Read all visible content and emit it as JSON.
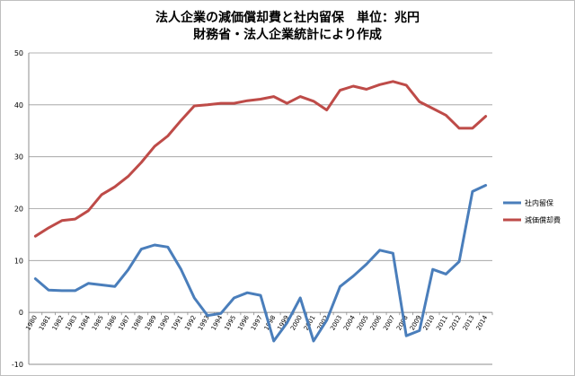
{
  "chart_data": {
    "type": "line",
    "title": "法人企業の減価償却費と社内留保　単位：兆円",
    "subtitle": "財務省・法人企業統計により作成",
    "xlabel": "",
    "ylabel": "",
    "ylim": [
      -10,
      50
    ],
    "yticks": [
      -10,
      0,
      10,
      20,
      30,
      40,
      50
    ],
    "grid": true,
    "legend_position": "right",
    "x": [
      "1980",
      "1981",
      "1982",
      "1983",
      "1984",
      "1985",
      "1986",
      "1987",
      "1988",
      "1989",
      "1990",
      "1991",
      "1992",
      "1993",
      "1994",
      "1995",
      "1996",
      "1997",
      "1998",
      "1999",
      "2000",
      "2001",
      "2002",
      "2003",
      "2004",
      "2005",
      "2006",
      "2007",
      "2008",
      "2009",
      "2010",
      "2011",
      "2012",
      "2013",
      "2014"
    ],
    "series": [
      {
        "name": "社内留保",
        "color": "#4a7ebb",
        "values": [
          6.5,
          4.3,
          4.2,
          4.2,
          5.6,
          5.3,
          5.0,
          8.2,
          12.2,
          13.0,
          12.6,
          8.3,
          2.8,
          -0.6,
          -0.2,
          2.8,
          3.8,
          3.3,
          -5.5,
          -2.0,
          2.8,
          -5.5,
          -1.5,
          5.0,
          7.0,
          9.3,
          12.0,
          11.4,
          -4.5,
          -3.5,
          8.3,
          7.4,
          9.8,
          23.3,
          24.5
        ]
      },
      {
        "name": "減価償却費",
        "color": "#be4b48",
        "values": [
          14.7,
          16.3,
          17.7,
          18.0,
          19.6,
          22.7,
          24.2,
          26.2,
          28.9,
          32.0,
          34.0,
          37.0,
          39.8,
          40.0,
          40.3,
          40.3,
          40.8,
          41.1,
          41.6,
          40.3,
          41.6,
          40.7,
          39.0,
          42.8,
          43.6,
          43.0,
          43.9,
          44.5,
          43.8,
          40.6,
          39.3,
          38.0,
          35.5,
          35.5,
          37.8
        ]
      }
    ]
  }
}
